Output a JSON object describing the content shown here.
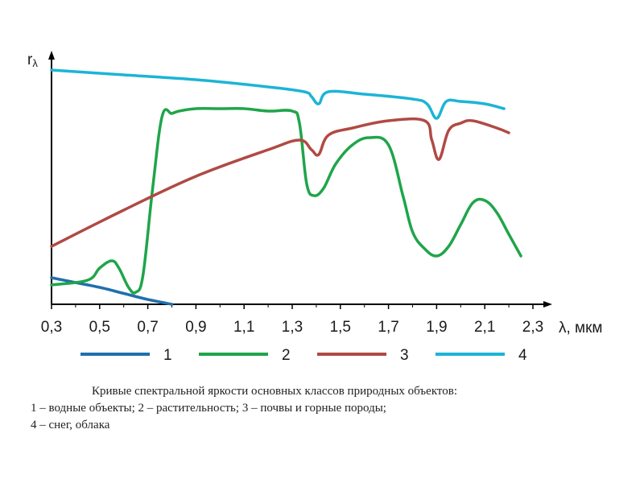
{
  "chart_data": {
    "type": "line",
    "title": "",
    "ylabel": "r",
    "ylabel_sub": "λ",
    "xlabel": "λ, мкм",
    "xlim": [
      0.3,
      2.3
    ],
    "ylim": [
      0,
      1
    ],
    "ticks": [
      "0,3",
      "0,5",
      "0,7",
      "0,9",
      "1,1",
      "1,3",
      "1,5",
      "1,7",
      "1,9",
      "2,1",
      "2,3"
    ],
    "tick_values": [
      0.3,
      0.5,
      0.7,
      0.9,
      1.1,
      1.3,
      1.5,
      1.7,
      1.9,
      2.1,
      2.3
    ],
    "series": [
      {
        "name": "1",
        "color": "#1f6fad",
        "x": [
          0.3,
          0.4,
          0.5,
          0.6,
          0.7,
          0.8
        ],
        "y": [
          0.11,
          0.09,
          0.07,
          0.045,
          0.02,
          0.0
        ]
      },
      {
        "name": "2",
        "color": "#1fa54a",
        "x": [
          0.3,
          0.45,
          0.5,
          0.55,
          0.58,
          0.62,
          0.65,
          0.68,
          0.72,
          0.76,
          0.8,
          0.83,
          0.9,
          1.0,
          1.1,
          1.2,
          1.3,
          1.33,
          1.36,
          1.39,
          1.43,
          1.48,
          1.55,
          1.62,
          1.7,
          1.76,
          1.8,
          1.85,
          1.9,
          1.95,
          2.0,
          2.05,
          2.1,
          2.15,
          2.2,
          2.25
        ],
        "y": [
          0.08,
          0.1,
          0.15,
          0.18,
          0.15,
          0.07,
          0.05,
          0.12,
          0.48,
          0.78,
          0.79,
          0.8,
          0.81,
          0.81,
          0.81,
          0.8,
          0.8,
          0.75,
          0.5,
          0.45,
          0.48,
          0.58,
          0.66,
          0.69,
          0.66,
          0.45,
          0.3,
          0.23,
          0.2,
          0.24,
          0.33,
          0.42,
          0.43,
          0.38,
          0.29,
          0.2
        ]
      },
      {
        "name": "3",
        "color": "#b04a44",
        "x": [
          0.3,
          0.6,
          0.9,
          1.2,
          1.33,
          1.38,
          1.41,
          1.45,
          1.55,
          1.7,
          1.85,
          1.88,
          1.91,
          1.95,
          2.0,
          2.05,
          2.15,
          2.2
        ],
        "y": [
          0.24,
          0.39,
          0.53,
          0.64,
          0.68,
          0.64,
          0.62,
          0.7,
          0.73,
          0.76,
          0.76,
          0.68,
          0.6,
          0.72,
          0.75,
          0.76,
          0.73,
          0.71
        ]
      },
      {
        "name": "4",
        "color": "#1cb4d6",
        "x": [
          0.3,
          0.6,
          0.9,
          1.2,
          1.35,
          1.38,
          1.41,
          1.45,
          1.6,
          1.8,
          1.86,
          1.9,
          1.94,
          2.0,
          2.1,
          2.18
        ],
        "y": [
          0.97,
          0.95,
          0.93,
          0.9,
          0.88,
          0.86,
          0.83,
          0.88,
          0.87,
          0.85,
          0.83,
          0.77,
          0.84,
          0.84,
          0.83,
          0.81
        ]
      }
    ]
  },
  "caption": {
    "line1": "Кривые спектральной яркости основных классов природных объектов:",
    "line2": "1 – водные объекты; 2 – растительность; 3 – почвы и горные породы;",
    "line3": "4 – снег, облака"
  }
}
